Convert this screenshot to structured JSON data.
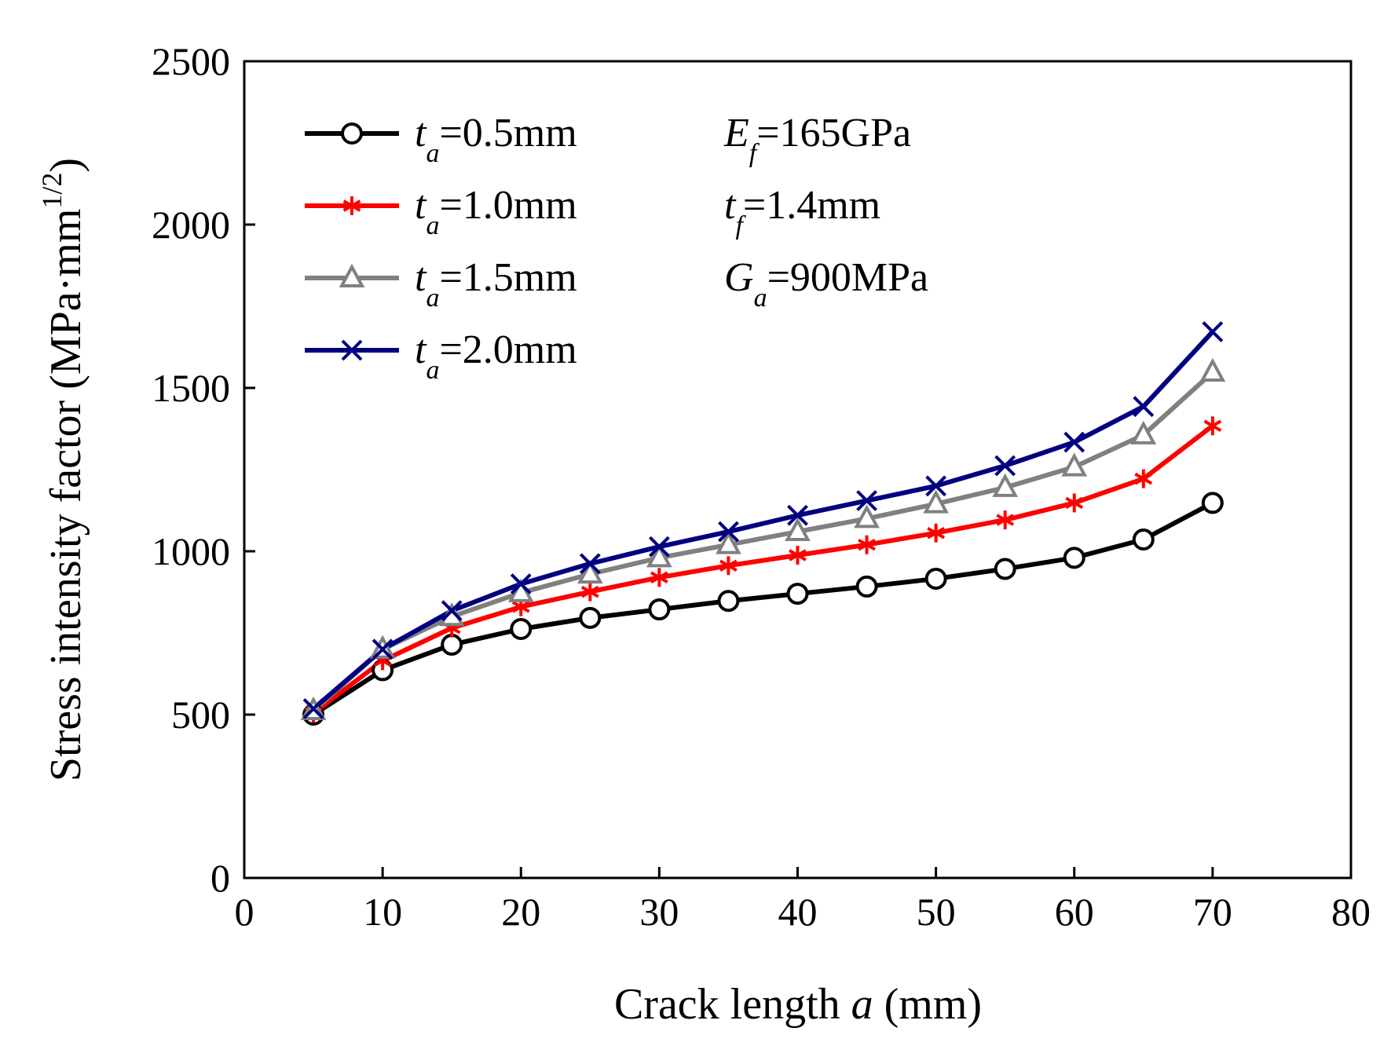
{
  "chart_data": {
    "type": "line",
    "xlabel": {
      "prefix": "Crack length ",
      "var": "a",
      "suffix": " (mm)"
    },
    "ylabel": {
      "text": "Stress intensity factor (MPa·mm",
      "sup": "1/2",
      "close": ")"
    },
    "xlim": [
      0,
      80
    ],
    "ylim": [
      0,
      2500
    ],
    "xticks": [
      0,
      10,
      20,
      30,
      40,
      50,
      60,
      70,
      80
    ],
    "yticks": [
      0,
      500,
      1000,
      1500,
      2000,
      2500
    ],
    "grid": false,
    "legend_position": "top-left",
    "x": [
      5,
      10,
      15,
      20,
      25,
      30,
      35,
      40,
      45,
      50,
      55,
      60,
      65,
      70
    ],
    "series": [
      {
        "sym": "t",
        "sub": "a",
        "value": "=0.5mm",
        "color": "#000000",
        "marker": "circle",
        "values": [
          500,
          636,
          714,
          762,
          796,
          822,
          848,
          870,
          892,
          916,
          946,
          980,
          1036,
          1148
        ]
      },
      {
        "sym": "t",
        "sub": "a",
        "value": "=1.0mm",
        "color": "#ff0000",
        "marker": "asterisk",
        "values": [
          505,
          665,
          765,
          830,
          876,
          920,
          956,
          988,
          1020,
          1056,
          1096,
          1148,
          1222,
          1384
        ]
      },
      {
        "sym": "t",
        "sub": "a",
        "value": "=1.5mm",
        "color": "#808080",
        "marker": "triangle",
        "values": [
          512,
          700,
          800,
          873,
          930,
          980,
          1020,
          1060,
          1100,
          1145,
          1195,
          1258,
          1356,
          1548
        ]
      },
      {
        "sym": "t",
        "sub": "a",
        "value": "=2.0mm",
        "color": "#000080",
        "marker": "x",
        "values": [
          518,
          700,
          818,
          900,
          962,
          1014,
          1060,
          1110,
          1155,
          1200,
          1262,
          1334,
          1443,
          1672
        ]
      }
    ],
    "annotations": [
      {
        "sym": "E",
        "sub": "f",
        "value": "=165GPa"
      },
      {
        "sym": "t",
        "sub": "f",
        "value": "=1.4mm"
      },
      {
        "sym": "G",
        "sub": "a",
        "value": "=900MPa"
      }
    ]
  }
}
